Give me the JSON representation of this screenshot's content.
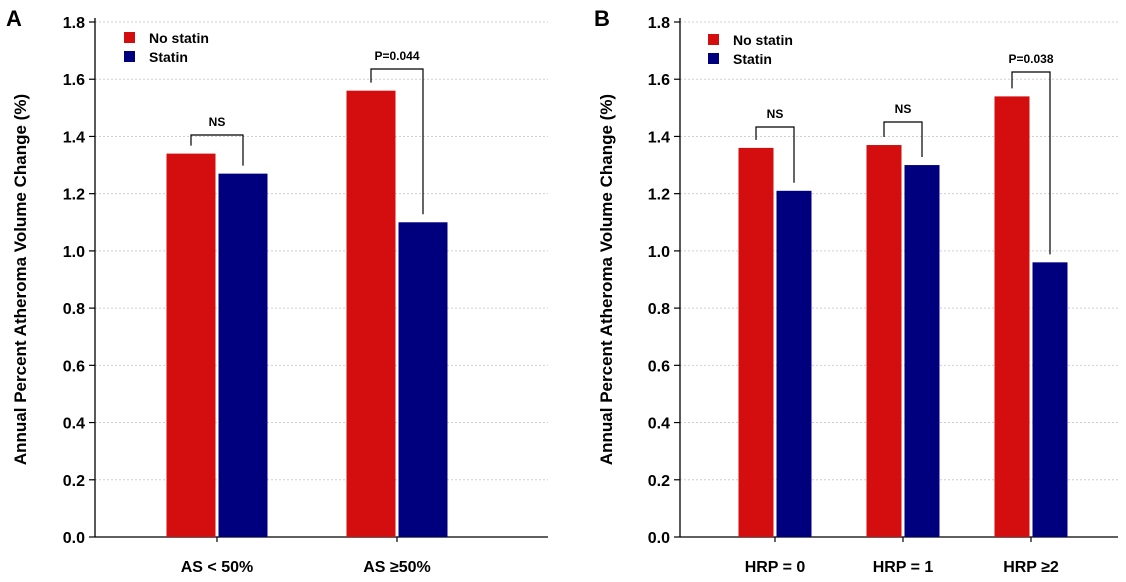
{
  "colors": {
    "no_statin": "#d40e0e",
    "statin": "#00007f"
  },
  "chart_data": [
    {
      "panel": "A",
      "type": "bar",
      "ylabel": "Annual Percent Atheroma Volume Change (%)",
      "ylim": [
        0,
        1.8
      ],
      "yticks": [
        "0.0",
        "0.2",
        "0.4",
        "0.6",
        "0.8",
        "1.0",
        "1.2",
        "1.4",
        "1.6",
        "1.8"
      ],
      "grid": true,
      "legend_position": "top-left",
      "categories": [
        "AS < 50%",
        "AS ≥50%"
      ],
      "series": [
        {
          "name": "No statin",
          "values": [
            1.34,
            1.56
          ]
        },
        {
          "name": "Statin",
          "values": [
            1.27,
            1.1
          ]
        }
      ],
      "annotations": [
        "NS",
        "P=0.044"
      ]
    },
    {
      "panel": "B",
      "type": "bar",
      "ylabel": "Annual Percent Atheroma Volume Change (%)",
      "ylim": [
        0,
        1.8
      ],
      "yticks": [
        "0.0",
        "0.2",
        "0.4",
        "0.6",
        "0.8",
        "1.0",
        "1.2",
        "1.4",
        "1.6",
        "1.8"
      ],
      "grid": true,
      "legend_position": "top-left",
      "categories": [
        "HRP = 0",
        "HRP = 1",
        "HRP ≥2"
      ],
      "series": [
        {
          "name": "No statin",
          "values": [
            1.36,
            1.37,
            1.54
          ]
        },
        {
          "name": "Statin",
          "values": [
            1.21,
            1.3,
            0.96
          ]
        }
      ],
      "annotations": [
        "NS",
        "NS",
        "P=0.038"
      ]
    }
  ]
}
